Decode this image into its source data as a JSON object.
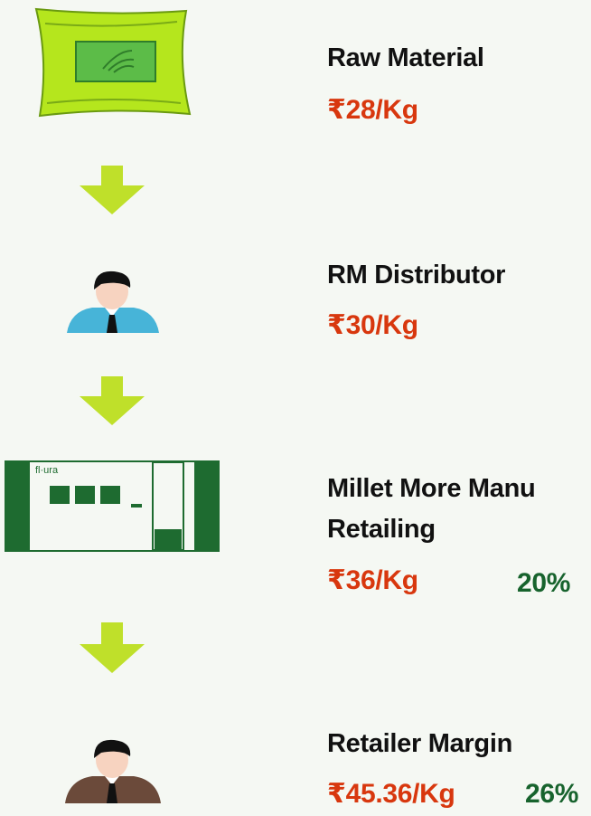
{
  "steps": [
    {
      "title": "Raw Material",
      "price": "₹28/Kg"
    },
    {
      "title": "RM Distributor",
      "price": "₹30/Kg"
    },
    {
      "title": "Millet More Manu",
      "title_line2": "Retailing",
      "price": "₹36/Kg",
      "percent": "20%"
    },
    {
      "title": "Retailer Margin",
      "price": "₹45.36/Kg",
      "percent": "26%"
    }
  ]
}
